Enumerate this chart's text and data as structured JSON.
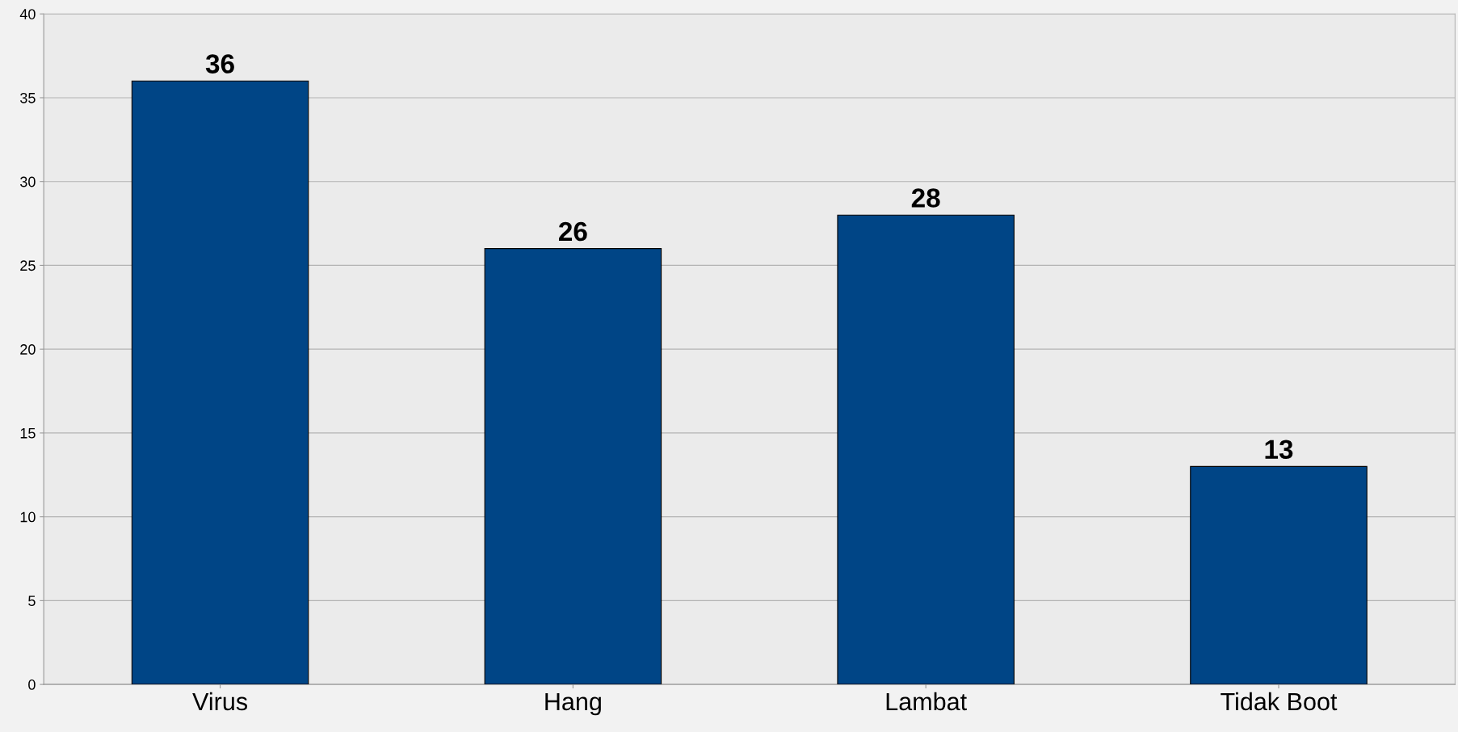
{
  "chart_data": {
    "type": "bar",
    "categories": [
      "Virus",
      "Hang",
      "Lambat",
      "Tidak Boot"
    ],
    "values": [
      36,
      26,
      28,
      13
    ],
    "color": "#004586",
    "ylim": [
      0,
      40
    ],
    "yticks": [
      0,
      5,
      10,
      15,
      20,
      25,
      30,
      35,
      40
    ],
    "grid": "y",
    "data_labels": true
  }
}
